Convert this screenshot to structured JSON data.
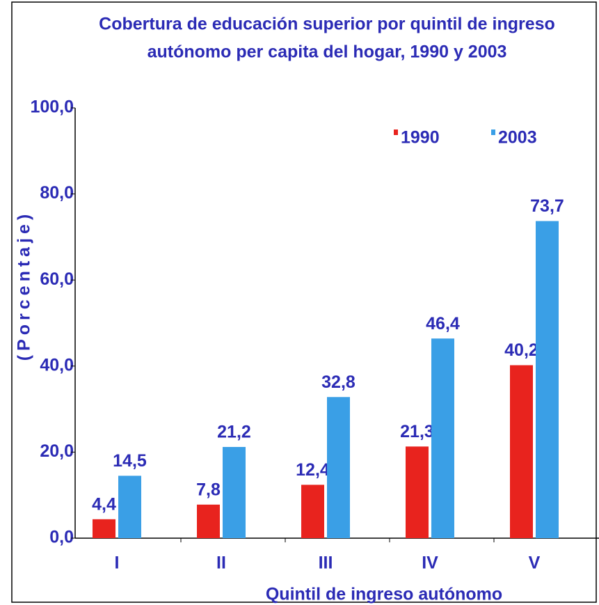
{
  "chart_data": {
    "type": "bar",
    "title": [
      "Cobertura de educación superior por quintil de ingreso",
      "autónomo per capita del hogar, 1990 y 2003"
    ],
    "x_label": "Quintil de ingreso autónomo",
    "y_label": "(Porcentaje)",
    "categories": [
      "I",
      "II",
      "III",
      "IV",
      "V"
    ],
    "series": [
      {
        "name": "1990",
        "color": "#e8231e",
        "values": [
          4.4,
          7.8,
          12.4,
          21.3,
          40.2
        ],
        "value_labels": [
          "4,4",
          "7,8",
          "12,4",
          "21,3",
          "40,2"
        ]
      },
      {
        "name": "2003",
        "color": "#3a9fe6",
        "values": [
          14.5,
          21.2,
          32.8,
          46.4,
          73.7
        ],
        "value_labels": [
          "14,5",
          "21,2",
          "32,8",
          "46,4",
          "73,7"
        ]
      }
    ],
    "ylim": [
      0,
      100
    ],
    "yticks": [
      {
        "value": 0,
        "label": "0,0"
      },
      {
        "value": 20,
        "label": "20,0"
      },
      {
        "value": 40,
        "label": "40,0"
      },
      {
        "value": 60,
        "label": "60,0"
      },
      {
        "value": 80,
        "label": "80,0"
      },
      {
        "value": 100,
        "label": "100,0"
      }
    ],
    "grid": false,
    "legend": "top-right"
  }
}
